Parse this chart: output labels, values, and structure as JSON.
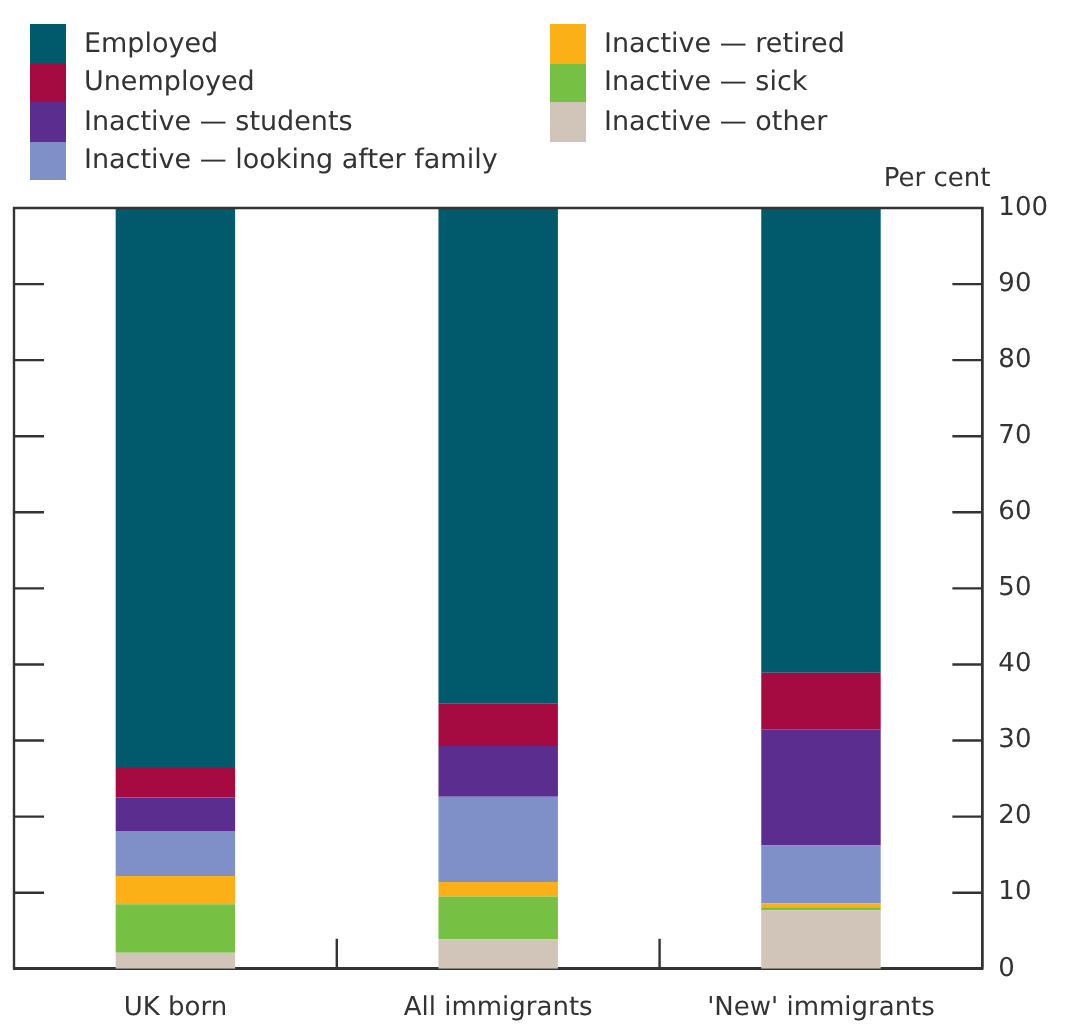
{
  "chart_data": {
    "type": "bar",
    "stacked": true,
    "ylabel": "Per cent",
    "categories": [
      "UK born",
      "All immigrants",
      "'New' immigrants"
    ],
    "series": [
      {
        "name": "Inactive — other",
        "color": "#d0c5b8",
        "values": [
          2.1,
          3.9,
          7.7
        ]
      },
      {
        "name": "Inactive — sick",
        "color": "#76c044",
        "values": [
          6.4,
          5.6,
          0.4
        ]
      },
      {
        "name": "Inactive — retired",
        "color": "#fcb017",
        "values": [
          3.7,
          1.9,
          0.5
        ]
      },
      {
        "name": "Inactive — looking after family",
        "color": "#7f8fc8",
        "values": [
          5.9,
          11.2,
          7.6
        ]
      },
      {
        "name": "Inactive — students",
        "color": "#5a2d8f",
        "values": [
          4.4,
          6.7,
          15.3
        ]
      },
      {
        "name": "Unemployed",
        "color": "#a50a40",
        "values": [
          3.9,
          5.6,
          7.4
        ]
      },
      {
        "name": "Employed",
        "color": "#005a6b",
        "values": [
          73.6,
          65.1,
          61.1
        ]
      }
    ],
    "ylim": [
      0,
      100
    ],
    "yticks": [
      0,
      10,
      20,
      30,
      40,
      50,
      60,
      70,
      80,
      90,
      100
    ],
    "grid": false,
    "legend": "top"
  }
}
